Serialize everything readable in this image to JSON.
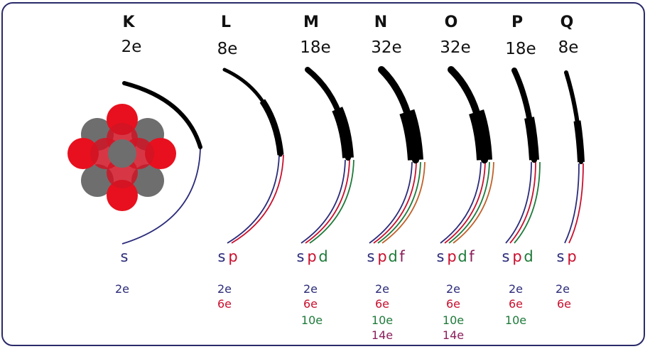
{
  "colors": {
    "s": "#2b2b7a",
    "p": "#c8102e",
    "d": "#1e7a3a",
    "f": "#c0602a",
    "f_text": "#8a1e5a",
    "shell": "#000000",
    "proton": "#e8101e",
    "neutron": "#6e6e6e",
    "frame": "#2a2a6a"
  },
  "shells": [
    {
      "name": "K",
      "capacity": "2e",
      "subshells": [
        {
          "letter": "s",
          "capacity": "2e"
        }
      ]
    },
    {
      "name": "L",
      "capacity": "8e",
      "subshells": [
        {
          "letter": "s",
          "capacity": "2e"
        },
        {
          "letter": "p",
          "capacity": "6e"
        }
      ]
    },
    {
      "name": "M",
      "capacity": "18e",
      "subshells": [
        {
          "letter": "s",
          "capacity": "2e"
        },
        {
          "letter": "p",
          "capacity": "6e"
        },
        {
          "letter": "d",
          "capacity": "10e"
        }
      ]
    },
    {
      "name": "N",
      "capacity": "32e",
      "subshells": [
        {
          "letter": "s",
          "capacity": "2e"
        },
        {
          "letter": "p",
          "capacity": "6e"
        },
        {
          "letter": "d",
          "capacity": "10e"
        },
        {
          "letter": "f",
          "capacity": "14e"
        }
      ]
    },
    {
      "name": "O",
      "capacity": "32e",
      "subshells": [
        {
          "letter": "s",
          "capacity": "2e"
        },
        {
          "letter": "p",
          "capacity": "6e"
        },
        {
          "letter": "d",
          "capacity": "10e"
        },
        {
          "letter": "f",
          "capacity": "14e"
        }
      ]
    },
    {
      "name": "P",
      "capacity": "18e",
      "subshells": [
        {
          "letter": "s",
          "capacity": "2e"
        },
        {
          "letter": "p",
          "capacity": "6e"
        },
        {
          "letter": "d",
          "capacity": "10e"
        }
      ]
    },
    {
      "name": "Q",
      "capacity": "8e",
      "subshells": [
        {
          "letter": "s",
          "capacity": "2e"
        },
        {
          "letter": "p",
          "capacity": "6e"
        }
      ]
    }
  ]
}
